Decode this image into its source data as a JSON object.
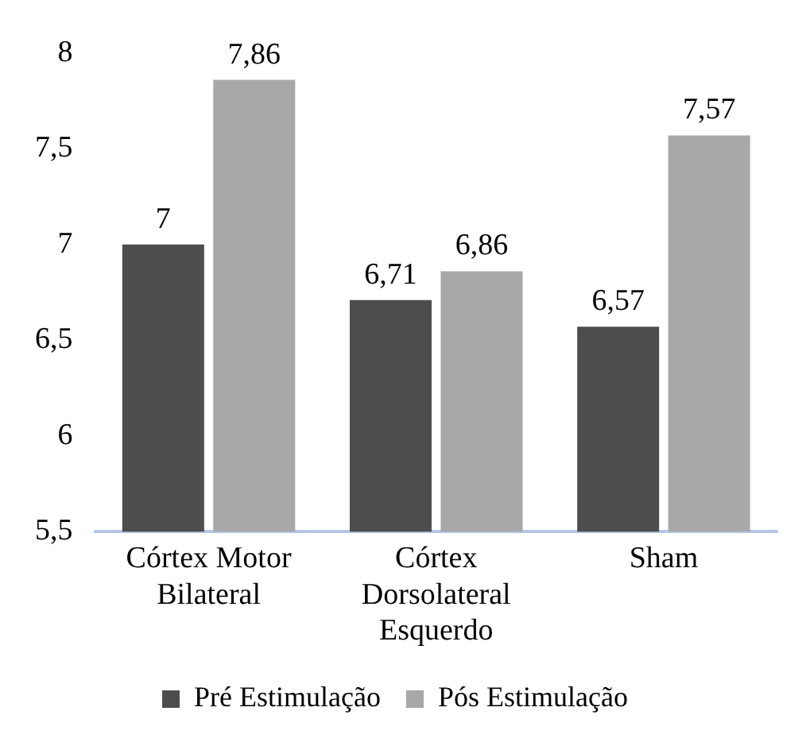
{
  "chart_data": {
    "type": "bar",
    "categories": [
      "Córtex Motor Bilateral",
      "Córtex Dorsolateral Esquerdo",
      "Sham"
    ],
    "series": [
      {
        "name": "Pré Estimulação",
        "color": "#4d4d4d",
        "values": [
          7,
          6.71,
          6.57
        ],
        "value_labels": [
          "7",
          "6,71",
          "6,57"
        ]
      },
      {
        "name": "Pós Estimulação",
        "color": "#a8a8a8",
        "values": [
          7.86,
          6.86,
          7.57
        ],
        "value_labels": [
          "7,86",
          "6,86",
          "7,57"
        ]
      }
    ],
    "ylim": [
      5.5,
      8
    ],
    "yticks": [
      {
        "value": 5.5,
        "label": "5,5"
      },
      6,
      {
        "value": 6.5,
        "label": "6,5"
      },
      7,
      {
        "value": 7.5,
        "label": "7,5"
      },
      8
    ],
    "grid": false,
    "legend": "bottom"
  }
}
